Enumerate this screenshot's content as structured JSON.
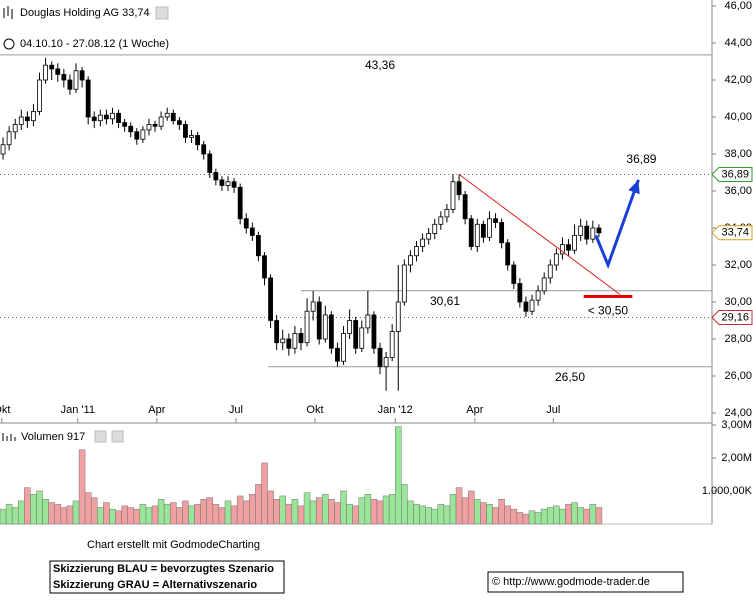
{
  "chart_data": {
    "type": "candlestick",
    "title": "Douglas Holding AG 33,74",
    "subtitle": "04.10.10 - 27.08.12 (1 Woche)",
    "xlim": [
      -0.5,
      116.6
    ],
    "ylim": [
      24,
      46
    ],
    "xticks": [
      {
        "value": -0.2,
        "label": "Okt"
      },
      {
        "value": 12.3,
        "label": "Jan '11"
      },
      {
        "value": 25.3,
        "label": "Apr"
      },
      {
        "value": 38.3,
        "label": "Jul"
      },
      {
        "value": 51.3,
        "label": "Okt"
      },
      {
        "value": 64.5,
        "label": "Jan '12"
      },
      {
        "value": 77.6,
        "label": "Apr"
      },
      {
        "value": 90.5,
        "label": "Jul"
      }
    ],
    "yticks": [
      {
        "value": 24,
        "label": "24,00"
      },
      {
        "value": 26,
        "label": "26,00"
      },
      {
        "value": 28,
        "label": "28,00"
      },
      {
        "value": 30,
        "label": "30,00"
      },
      {
        "value": 32,
        "label": "32,00"
      },
      {
        "value": 34,
        "label": "34,00"
      },
      {
        "value": 36,
        "label": "36,00"
      },
      {
        "value": 38,
        "label": "38,00"
      },
      {
        "value": 40,
        "label": "40,00"
      },
      {
        "value": 42,
        "label": "42,00"
      },
      {
        "value": 44,
        "label": "44,00"
      },
      {
        "value": 46,
        "label": "46,00"
      }
    ],
    "up_color": "#ffffff",
    "down_color": "#000000",
    "open": [
      38.0,
      38.5,
      39.2,
      39.6,
      40.0,
      39.8,
      40.3,
      42.0,
      42.8,
      42.6,
      42.3,
      42.0,
      41.5,
      42.5,
      42.0,
      40.0,
      39.8,
      40.1,
      39.9,
      40.2,
      39.7,
      39.5,
      39.2,
      38.8,
      39.3,
      39.6,
      39.5,
      40.0,
      40.2,
      39.8,
      39.6,
      38.9,
      39.0,
      38.5,
      38.0,
      37.0,
      36.6,
      36.3,
      36.5,
      36.2,
      34.5,
      34.0,
      33.6,
      32.5,
      31.3,
      29.0,
      27.8,
      28.0,
      27.5,
      28.3,
      27.8,
      29.5,
      30.0,
      28.0,
      29.3,
      27.5,
      26.8,
      28.3,
      29.0,
      27.5,
      28.6,
      29.3,
      27.5,
      26.5,
      27.0,
      28.4,
      30.0,
      32.0,
      32.5,
      33.0,
      33.4,
      33.7,
      34.2,
      34.6,
      35.0,
      36.5,
      35.8,
      34.5,
      33.0,
      34.2,
      33.5,
      34.5,
      34.3,
      33.2,
      32.0,
      31.0,
      30.0,
      29.5,
      30.1,
      30.6,
      31.3,
      32.0,
      32.6,
      33.1,
      32.8,
      33.6,
      34.1,
      33.4,
      34.0
    ],
    "high": [
      38.9,
      39.5,
      39.9,
      40.4,
      40.3,
      40.7,
      42.4,
      43.2,
      43.0,
      42.9,
      42.6,
      42.3,
      42.9,
      42.7,
      42.2,
      40.3,
      40.4,
      40.4,
      40.5,
      40.4,
      39.9,
      39.7,
      39.4,
      39.5,
      39.9,
      39.8,
      40.3,
      40.5,
      40.4,
      40.0,
      39.8,
      39.3,
      39.2,
      38.7,
      38.2,
      37.2,
      36.8,
      36.8,
      36.7,
      36.4,
      34.8,
      34.3,
      33.8,
      32.7,
      31.5,
      29.3,
      28.5,
      28.3,
      28.7,
      28.6,
      30.2,
      30.6,
      30.3,
      29.8,
      29.5,
      27.8,
      28.7,
      29.6,
      29.2,
      29.0,
      30.6,
      29.5,
      27.8,
      27.3,
      28.8,
      32.0,
      32.3,
      32.8,
      33.3,
      33.7,
      34.0,
      34.5,
      34.9,
      35.3,
      36.9,
      36.9,
      36.0,
      34.7,
      34.5,
      34.4,
      34.9,
      34.8,
      34.5,
      33.4,
      32.2,
      31.3,
      30.3,
      30.4,
      30.9,
      31.6,
      32.3,
      32.9,
      33.5,
      33.4,
      34.2,
      34.5,
      34.4,
      34.4,
      34.2
    ],
    "low": [
      37.7,
      38.2,
      38.8,
      39.3,
      39.4,
      39.5,
      40.1,
      41.8,
      42.0,
      41.9,
      41.6,
      41.2,
      41.3,
      41.6,
      39.6,
      39.4,
      39.5,
      39.6,
      39.6,
      39.4,
      39.2,
      38.9,
      38.5,
      38.6,
      39.0,
      39.2,
      39.3,
      39.8,
      39.6,
      39.3,
      38.6,
      38.6,
      38.2,
      37.7,
      36.7,
      36.3,
      36.0,
      36.0,
      35.9,
      34.2,
      33.7,
      33.3,
      32.2,
      30.9,
      28.6,
      27.4,
      27.4,
      27.1,
      27.2,
      27.4,
      27.6,
      29.0,
      27.7,
      27.8,
      27.2,
      26.5,
      26.6,
      28.0,
      27.2,
      27.3,
      28.3,
      27.2,
      26.1,
      25.2,
      26.8,
      25.2,
      29.8,
      31.6,
      32.2,
      32.7,
      33.1,
      33.4,
      33.9,
      34.3,
      34.8,
      35.5,
      34.2,
      32.8,
      32.7,
      33.2,
      33.3,
      34.0,
      32.9,
      31.7,
      30.7,
      29.7,
      29.2,
      29.3,
      29.8,
      30.4,
      31.0,
      31.7,
      32.3,
      32.5,
      32.6,
      33.3,
      33.1,
      33.2,
      33.5
    ],
    "close": [
      38.5,
      39.2,
      39.6,
      40.0,
      39.8,
      40.3,
      42.0,
      42.8,
      42.6,
      42.3,
      42.0,
      41.5,
      42.5,
      42.0,
      40.0,
      39.8,
      40.1,
      39.9,
      40.2,
      39.7,
      39.5,
      39.2,
      38.8,
      39.3,
      39.6,
      39.5,
      40.0,
      40.2,
      39.8,
      39.6,
      38.9,
      39.0,
      38.5,
      38.0,
      37.0,
      36.6,
      36.3,
      36.5,
      36.2,
      34.5,
      34.0,
      33.6,
      32.5,
      31.3,
      29.0,
      27.8,
      28.0,
      27.5,
      28.3,
      27.8,
      29.5,
      30.0,
      28.0,
      29.3,
      27.5,
      26.8,
      28.3,
      29.0,
      27.5,
      28.6,
      29.3,
      27.5,
      26.5,
      27.0,
      28.4,
      30.0,
      32.0,
      32.5,
      33.0,
      33.4,
      33.7,
      34.2,
      34.6,
      35.0,
      36.5,
      35.8,
      34.5,
      33.0,
      34.2,
      33.5,
      34.5,
      34.3,
      33.2,
      32.0,
      31.0,
      30.0,
      29.5,
      30.1,
      30.6,
      31.3,
      32.0,
      32.6,
      33.1,
      32.8,
      33.6,
      34.1,
      33.4,
      34.0,
      33.74
    ],
    "levels": [
      {
        "value": 43.36,
        "label": "43,36",
        "start": -0.5,
        "color": "#000000"
      },
      {
        "value": 30.61,
        "label": "30,61",
        "start": 49,
        "color": "#999999"
      },
      {
        "value": 26.5,
        "label": "26,50",
        "start": 43.6,
        "color": "#000000"
      }
    ],
    "price_flags": [
      {
        "value": 36.89,
        "label": "36,89",
        "color": "#2e9e2e",
        "dotted": true
      },
      {
        "value": 33.74,
        "label": "33,74",
        "color": "#d4a017",
        "dotted": false
      },
      {
        "value": 29.16,
        "label": "29,16",
        "color": "#c03030",
        "dotted": true
      }
    ],
    "trendline": {
      "color": "#e02020",
      "x": [
        75,
        101.5
      ],
      "y": [
        36.9,
        30.4
      ]
    },
    "support_mark": {
      "label": "< 30,50",
      "color": "#e00000",
      "x": [
        95.5,
        103.5
      ],
      "y": 30.3
    },
    "target_arrow": {
      "label": "36,89",
      "color": "#1a3fd6",
      "x": [
        97.5,
        99.5,
        104.5
      ],
      "y": [
        33.6,
        32.0,
        36.6
      ]
    },
    "volume": {
      "title": "Volumen 917",
      "up_color": "#99e699",
      "down_color": "#f0a0a0",
      "ylim": [
        0,
        3000
      ],
      "yticks": [
        {
          "value": 1000,
          "label": "1.000,00K"
        },
        {
          "value": 2000,
          "label": "2,00M"
        },
        {
          "value": 3000,
          "label": "3,00M"
        }
      ],
      "values": [
        450,
        600,
        500,
        700,
        1100,
        900,
        1000,
        750,
        650,
        600,
        500,
        550,
        700,
        2250,
        950,
        800,
        500,
        650,
        450,
        400,
        550,
        500,
        450,
        600,
        500,
        550,
        750,
        600,
        650,
        500,
        700,
        550,
        600,
        750,
        800,
        600,
        500,
        700,
        550,
        850,
        700,
        900,
        1200,
        1850,
        1000,
        750,
        850,
        600,
        750,
        550,
        950,
        700,
        800,
        900,
        750,
        650,
        1000,
        600,
        550,
        800,
        900,
        750,
        700,
        850,
        900,
        2950,
        1200,
        700,
        600,
        550,
        500,
        450,
        600,
        550,
        900,
        1100,
        800,
        1000,
        750,
        650,
        600,
        500,
        750,
        550,
        450,
        350,
        300,
        400,
        350,
        450,
        500,
        550,
        450,
        600,
        650,
        500,
        450,
        600,
        500
      ]
    }
  },
  "footer": {
    "credit": "Chart erstellt mit GodmodeCharting",
    "legend": [
      "Skizzierung BLAU = bevorzugtes Szenario",
      "Skizzierung GRAU = Alternativszenario"
    ],
    "copyright": "© http://www.godmode-trader.de"
  }
}
